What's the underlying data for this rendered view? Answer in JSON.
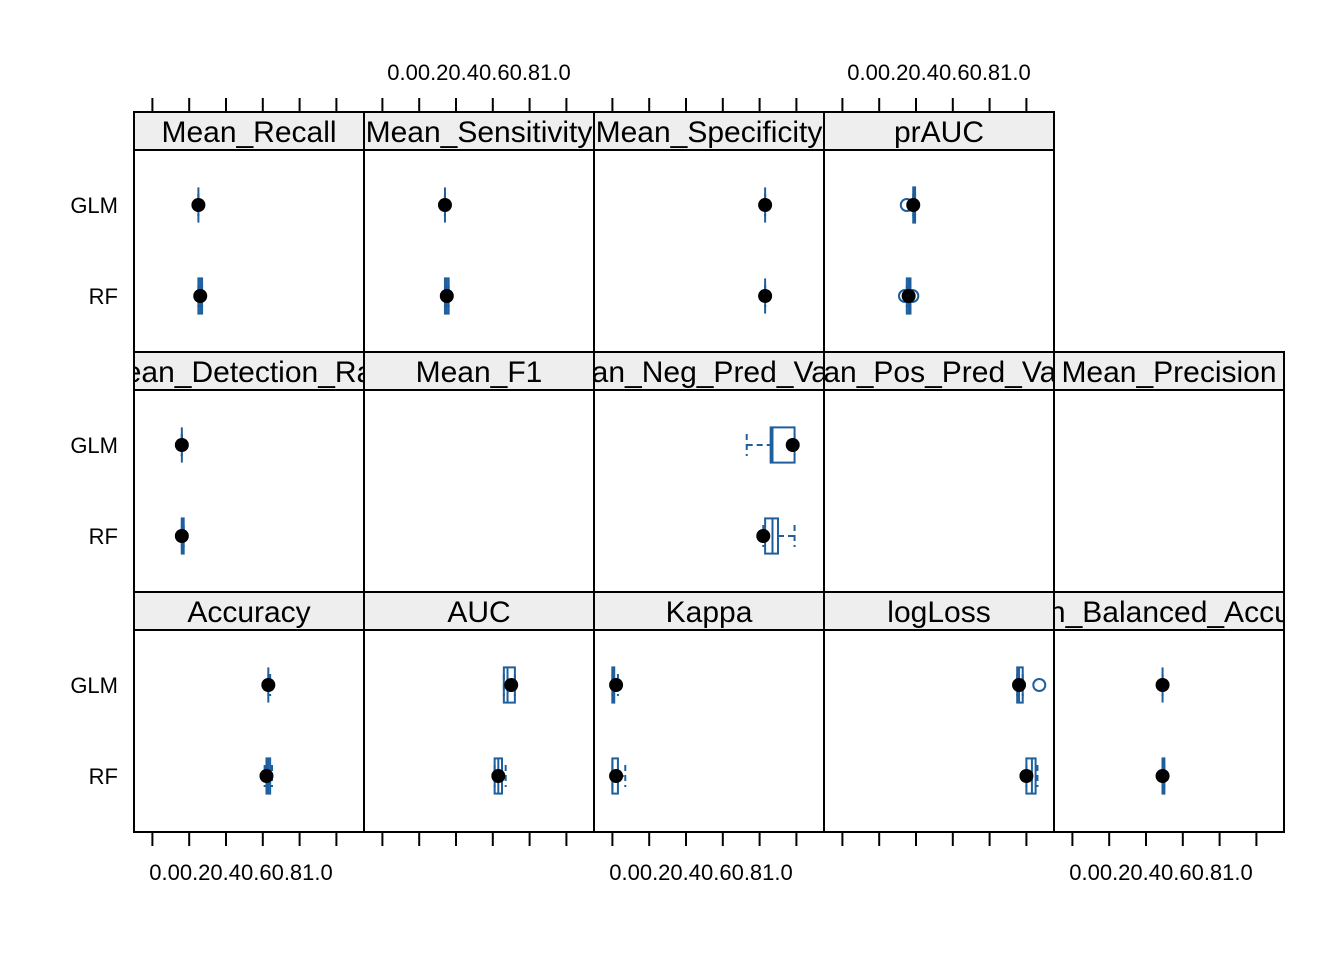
{
  "chart_data": {
    "type": "box-and-whisker (lattice bwplot)",
    "layout": "5 columns x 3 rows of panels",
    "x_ticks": [
      "0.0",
      "0.2",
      "0.4",
      "0.6",
      "0.8",
      "1.0"
    ],
    "x_tick_labels": [
      "0.00.20.40.60.81.0",
      "0.00.20.40.60.81.0",
      "0.00.20.40.60.81.0",
      "0.00.20.40.60.81.0"
    ],
    "xlim": [
      -0.1,
      1.15
    ],
    "models": [
      "GLM",
      "RF"
    ],
    "panels": [
      {
        "row": 1,
        "col": 1,
        "metric": "Mean_Recall",
        "stats": {
          "GLM": {
            "lw": 0.25,
            "q1": 0.25,
            "med": 0.25,
            "q3": 0.25,
            "uw": 0.25,
            "out": []
          },
          "RF": {
            "lw": 0.25,
            "q1": 0.25,
            "med": 0.26,
            "q3": 0.27,
            "uw": 0.27,
            "out": []
          }
        },
        "dots": {
          "GLM": 0.25,
          "RF": 0.26
        }
      },
      {
        "row": 1,
        "col": 2,
        "metric": "Mean_Sensitivity",
        "stats": {
          "GLM": {
            "lw": 0.34,
            "q1": 0.34,
            "med": 0.34,
            "q3": 0.34,
            "uw": 0.34,
            "out": []
          },
          "RF": {
            "lw": 0.34,
            "q1": 0.34,
            "med": 0.35,
            "q3": 0.36,
            "uw": 0.36,
            "out": []
          }
        },
        "dots": {
          "GLM": 0.34,
          "RF": 0.35
        }
      },
      {
        "row": 1,
        "col": 3,
        "metric": "Mean_Specificity",
        "stats": {
          "GLM": {
            "lw": 0.83,
            "q1": 0.83,
            "med": 0.83,
            "q3": 0.83,
            "uw": 0.83,
            "out": []
          },
          "RF": {
            "lw": 0.83,
            "q1": 0.83,
            "med": 0.83,
            "q3": 0.83,
            "uw": 0.83,
            "out": []
          }
        },
        "dots": {
          "GLM": 0.83,
          "RF": 0.83
        }
      },
      {
        "row": 1,
        "col": 4,
        "metric": "prAUC",
        "stats": {
          "GLM": {
            "lw": 0.385,
            "q1": 0.385,
            "med": 0.39,
            "q3": 0.395,
            "uw": 0.395,
            "out": [
              0.35
            ]
          },
          "RF": {
            "lw": 0.35,
            "q1": 0.35,
            "med": 0.36,
            "q3": 0.37,
            "uw": 0.37,
            "out": [
              0.34,
              0.38
            ]
          }
        },
        "dots": {
          "GLM": 0.385,
          "RF": 0.36
        }
      },
      {
        "row": 2,
        "col": 1,
        "metric": "Mean_Detection_Rate",
        "stats": {
          "GLM": {
            "lw": 0.16,
            "q1": 0.16,
            "med": 0.16,
            "q3": 0.16,
            "uw": 0.16,
            "out": []
          },
          "RF": {
            "lw": 0.16,
            "q1": 0.16,
            "med": 0.16,
            "q3": 0.17,
            "uw": 0.17,
            "out": []
          }
        },
        "dots": {
          "GLM": 0.16,
          "RF": 0.16
        }
      },
      {
        "row": 2,
        "col": 2,
        "metric": "Mean_F1",
        "stats": {},
        "dots": {}
      },
      {
        "row": 2,
        "col": 3,
        "metric": "Mean_Neg_Pred_Value",
        "stats": {
          "GLM": {
            "lw": 0.73,
            "q1": 0.86,
            "med": 0.87,
            "q3": 0.99,
            "uw": 0.99,
            "out": []
          },
          "RF": {
            "lw": 0.82,
            "q1": 0.83,
            "med": 0.87,
            "q3": 0.9,
            "uw": 0.99,
            "out": []
          }
        },
        "dots": {
          "GLM": 0.98,
          "RF": 0.82
        }
      },
      {
        "row": 2,
        "col": 4,
        "metric": "Mean_Pos_Pred_Value",
        "stats": {},
        "dots": {}
      },
      {
        "row": 2,
        "col": 5,
        "metric": "Mean_Precision",
        "stats": {},
        "dots": {}
      },
      {
        "row": 3,
        "col": 1,
        "metric": "Accuracy",
        "stats": {
          "GLM": {
            "lw": 0.63,
            "q1": 0.63,
            "med": 0.63,
            "q3": 0.63,
            "uw": 0.64,
            "out": []
          },
          "RF": {
            "lw": 0.61,
            "q1": 0.62,
            "med": 0.63,
            "q3": 0.64,
            "uw": 0.65,
            "out": []
          }
        },
        "dots": {
          "GLM": 0.63,
          "RF": 0.62
        }
      },
      {
        "row": 3,
        "col": 2,
        "metric": "AUC",
        "stats": {
          "GLM": {
            "lw": 0.66,
            "q1": 0.66,
            "med": 0.68,
            "q3": 0.72,
            "uw": 0.72,
            "out": []
          },
          "RF": {
            "lw": 0.61,
            "q1": 0.61,
            "med": 0.63,
            "q3": 0.65,
            "uw": 0.67,
            "out": []
          }
        },
        "dots": {
          "GLM": 0.7,
          "RF": 0.63
        }
      },
      {
        "row": 3,
        "col": 3,
        "metric": "Kappa",
        "stats": {
          "GLM": {
            "lw": 0.0,
            "q1": 0.0,
            "med": 0.0,
            "q3": 0.01,
            "uw": 0.03,
            "out": []
          },
          "RF": {
            "lw": 0.0,
            "q1": 0.0,
            "med": 0.0,
            "q3": 0.03,
            "uw": 0.07,
            "out": []
          }
        },
        "dots": {
          "GLM": 0.02,
          "RF": 0.02
        }
      },
      {
        "row": 3,
        "col": 4,
        "metric": "logLoss",
        "stats": {
          "GLM": {
            "lw": 0.95,
            "q1": 0.95,
            "med": 0.96,
            "q3": 0.98,
            "uw": 0.98,
            "out": [
              1.07
            ]
          },
          "RF": {
            "lw": 1.0,
            "q1": 1.0,
            "med": 1.03,
            "q3": 1.05,
            "uw": 1.06,
            "out": []
          }
        },
        "dots": {
          "GLM": 0.96,
          "RF": 1.0
        }
      },
      {
        "row": 3,
        "col": 5,
        "metric": "Mean_Balanced_Accuracy",
        "stats": {
          "GLM": {
            "lw": 0.49,
            "q1": 0.49,
            "med": 0.49,
            "q3": 0.49,
            "uw": 0.49,
            "out": []
          },
          "RF": {
            "lw": 0.49,
            "q1": 0.49,
            "med": 0.49,
            "q3": 0.5,
            "uw": 0.5,
            "out": []
          }
        },
        "dots": {
          "GLM": 0.49,
          "RF": 0.49
        }
      }
    ]
  },
  "colors": {
    "box": "#1f5f9e",
    "dot": "#000000",
    "strip": "#eeeeee",
    "border": "#000000"
  }
}
